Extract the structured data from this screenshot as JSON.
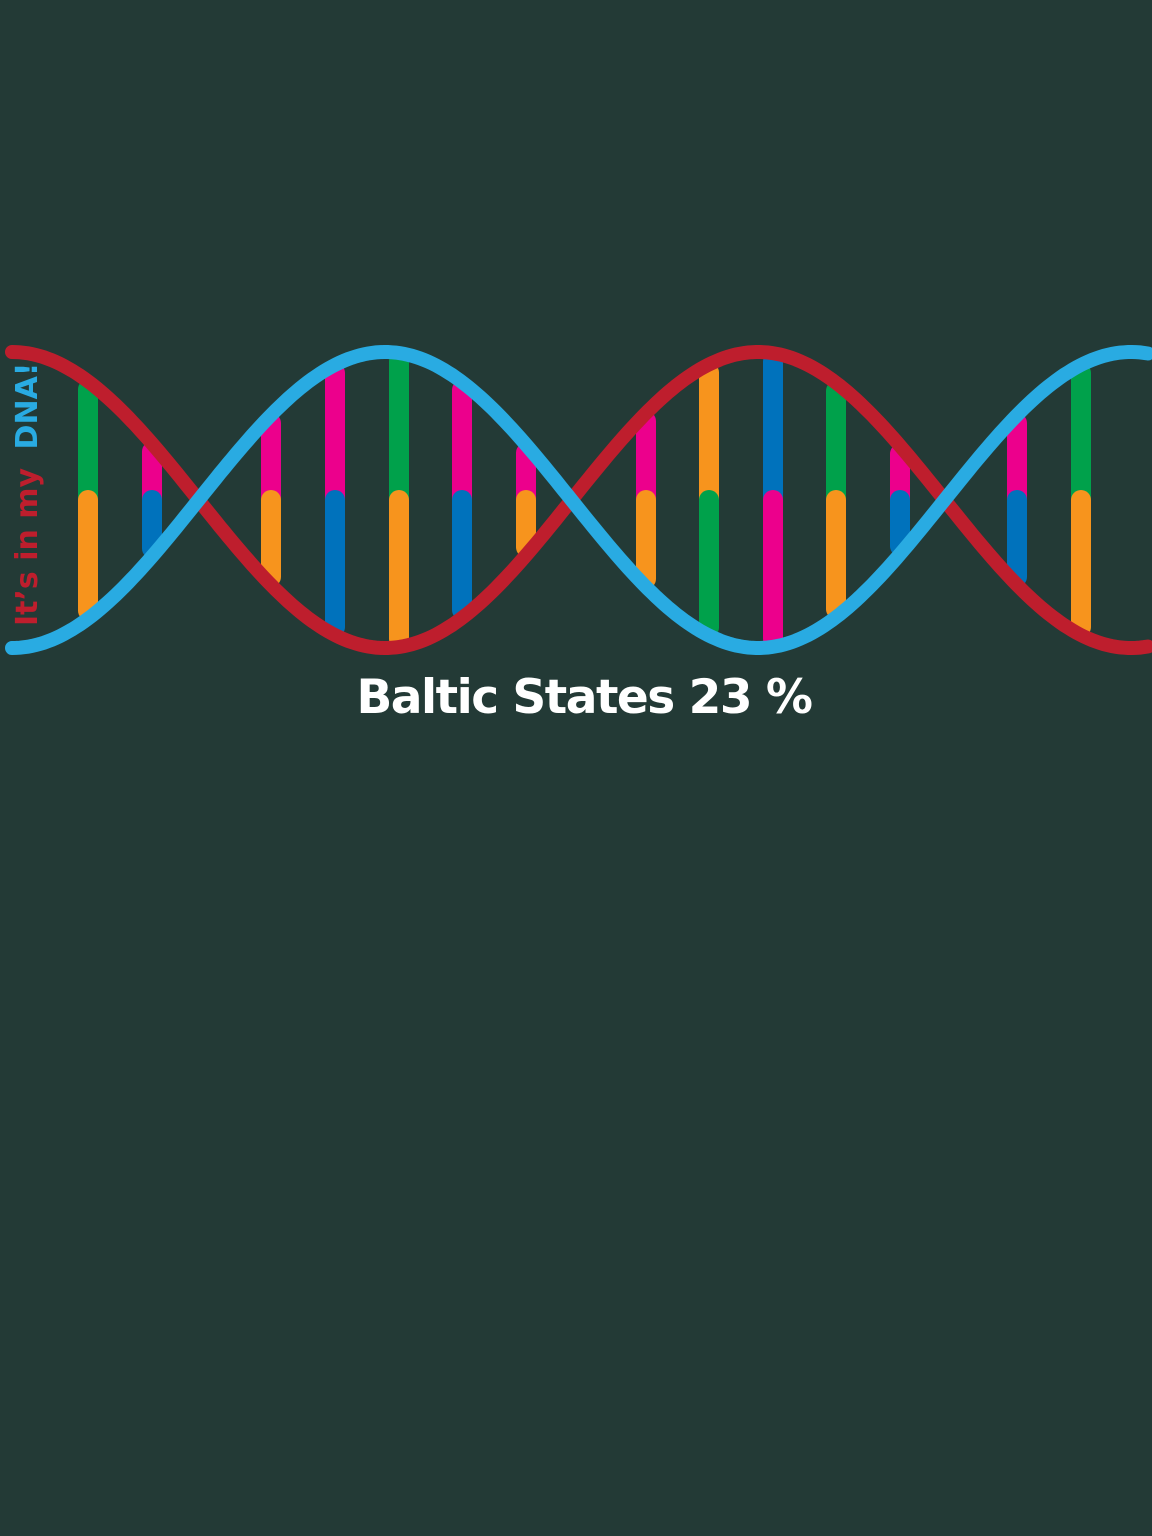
{
  "tagline": {
    "part1": "It’s in my",
    "part2": "DNA!"
  },
  "caption": {
    "region": "Baltic States",
    "percent": "23 %"
  },
  "colors": {
    "background": "#233a36",
    "strand_red": "#be1e2d",
    "strand_blue": "#29abe2",
    "base_green": "#00a14b",
    "base_orange": "#f7941d",
    "base_magenta": "#ec008c",
    "base_blue": "#0072bc"
  },
  "base_pairs": [
    [
      "green",
      "orange"
    ],
    [
      "magenta",
      "blue"
    ],
    [
      "magenta",
      "orange"
    ],
    [
      "magenta",
      "blue"
    ],
    [
      "green",
      "orange"
    ],
    [
      "magenta",
      "blue"
    ],
    [
      "magenta",
      "orange"
    ],
    [
      "magenta",
      "orange"
    ],
    [
      "orange",
      "green"
    ],
    [
      "blue",
      "magenta"
    ],
    [
      "green",
      "orange"
    ],
    [
      "magenta",
      "blue"
    ],
    [
      "magenta",
      "blue"
    ],
    [
      "green",
      "orange"
    ]
  ]
}
